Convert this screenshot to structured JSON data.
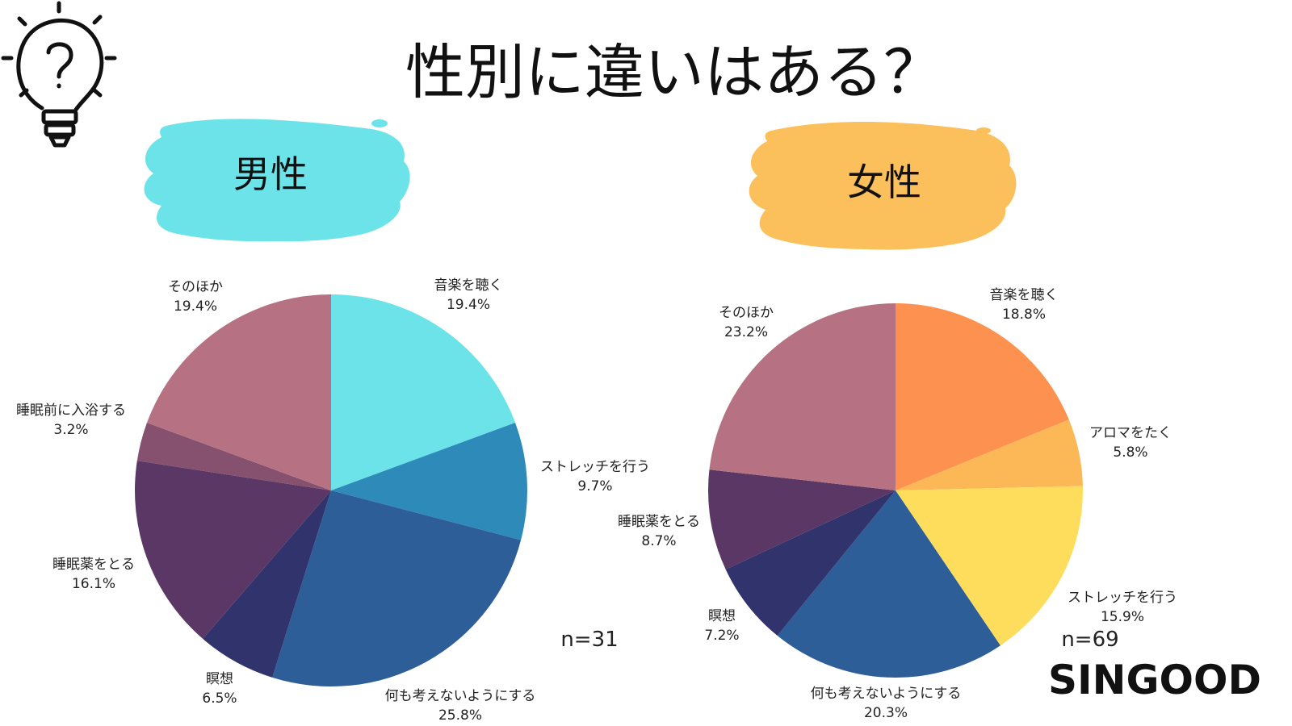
{
  "title": "性別に違いはある？",
  "brand": "SINGOOD",
  "icons": {
    "idea": "lightbulb-question-icon"
  },
  "chart_data": [
    {
      "type": "pie",
      "title": "男性",
      "note": "n=31",
      "title_badge_color": "#6be3e8",
      "slices": [
        {
          "label": "音楽を聴く",
          "value": 19.4,
          "value_label": "19.4%",
          "color": "#6be3e8"
        },
        {
          "label": "ストレッチを行う",
          "value": 9.7,
          "value_label": "9.7%",
          "color": "#2e8bb9"
        },
        {
          "label": "何も考えないようにする",
          "value": 25.8,
          "value_label": "25.8%",
          "color": "#2e5e97"
        },
        {
          "label": "瞑想",
          "value": 6.5,
          "value_label": "6.5%",
          "color": "#31336c"
        },
        {
          "label": "睡眠薬をとる",
          "value": 16.1,
          "value_label": "16.1%",
          "color": "#5b3766"
        },
        {
          "label": "睡眠前に入浴する",
          "value": 3.2,
          "value_label": "3.2%",
          "color": "#86516e"
        },
        {
          "label": "そのほか",
          "value": 19.4,
          "value_label": "19.4%",
          "color": "#b67282"
        }
      ]
    },
    {
      "type": "pie",
      "title": "女性",
      "note": "n=69",
      "title_badge_color": "#fbbf5c",
      "slices": [
        {
          "label": "音楽を聴く",
          "value": 18.8,
          "value_label": "18.8%",
          "color": "#fd9150"
        },
        {
          "label": "アロマをたく",
          "value": 5.8,
          "value_label": "5.8%",
          "color": "#fcb857"
        },
        {
          "label": "ストレッチを行う",
          "value": 15.9,
          "value_label": "15.9%",
          "color": "#fedd5d"
        },
        {
          "label": "何も考えないようにする",
          "value": 20.3,
          "value_label": "20.3%",
          "color": "#2e5e97"
        },
        {
          "label": "瞑想",
          "value": 7.2,
          "value_label": "7.2%",
          "color": "#31336c"
        },
        {
          "label": "睡眠薬をとる",
          "value": 8.7,
          "value_label": "8.7%",
          "color": "#5b3766"
        },
        {
          "label": "そのほか",
          "value": 23.2,
          "value_label": "23.2%",
          "color": "#b67282"
        }
      ]
    }
  ]
}
